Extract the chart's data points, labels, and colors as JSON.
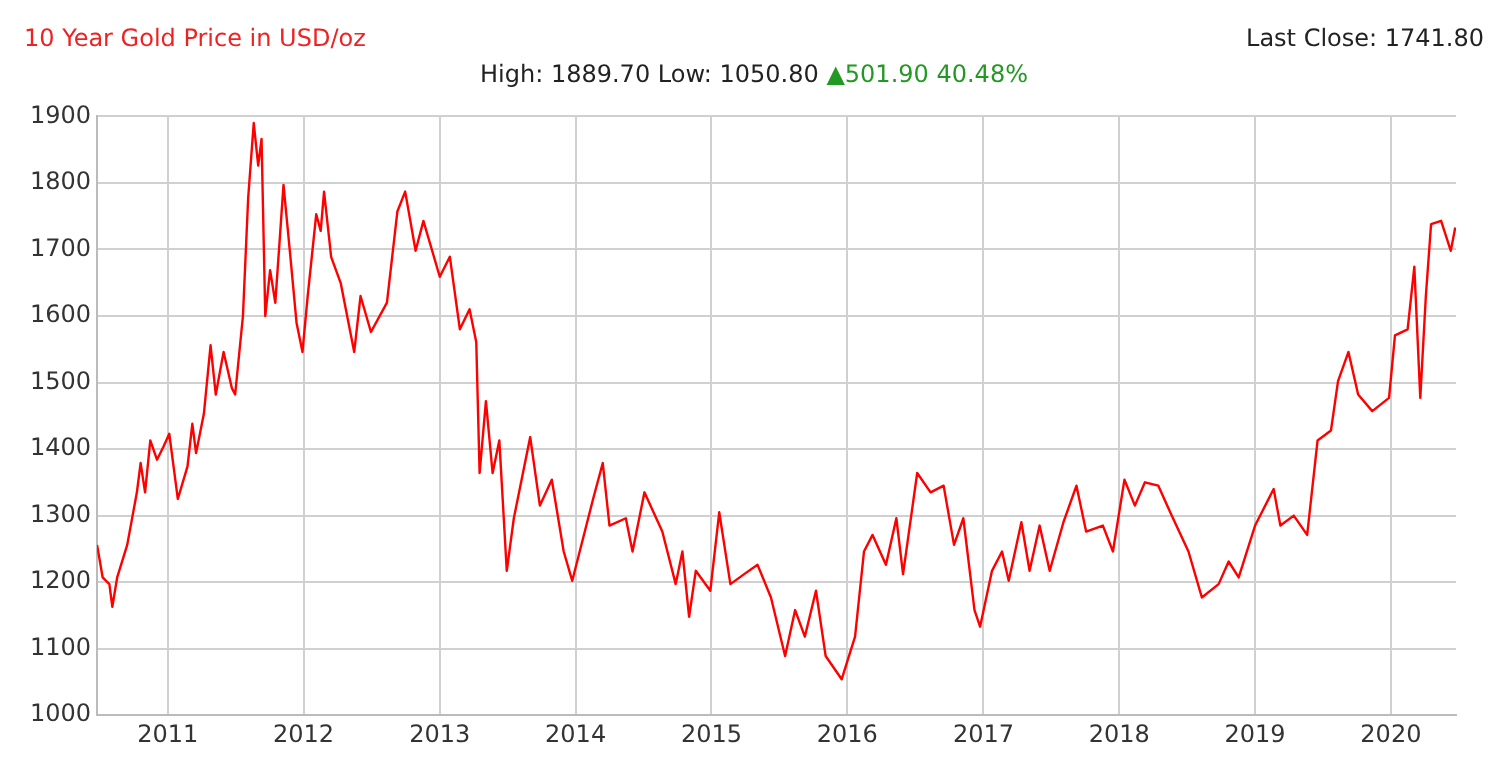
{
  "chart_data": {
    "type": "line",
    "title": "10 Year Gold Price in USD/oz",
    "subtitle": "High: 1889.70 Low: 1050.80",
    "annotations": [
      "Last Close: 1741.80",
      "▲501.90 40.48%"
    ],
    "x": [
      "2010-06-25",
      "2010-07-10",
      "2010-07-28",
      "2010-08-05",
      "2010-08-18",
      "2010-09-14",
      "2010-10-10",
      "2010-10-20",
      "2010-11-01",
      "2010-11-15",
      "2010-12-03",
      "2010-12-20",
      "2011-01-05",
      "2011-01-28",
      "2011-02-23",
      "2011-03-08",
      "2011-03-18",
      "2011-04-08",
      "2011-04-26",
      "2011-05-10",
      "2011-05-31",
      "2011-06-22",
      "2011-07-01",
      "2011-07-22",
      "2011-08-05",
      "2011-08-20",
      "2011-09-01",
      "2011-09-10",
      "2011-09-20",
      "2011-10-03",
      "2011-10-17",
      "2011-11-08",
      "2011-11-25",
      "2011-12-13",
      "2011-12-29",
      "2012-01-12",
      "2012-02-04",
      "2012-02-16",
      "2012-02-25",
      "2012-03-15",
      "2012-04-10",
      "2012-05-16",
      "2012-06-02",
      "2012-06-30",
      "2012-08-12",
      "2012-09-09",
      "2012-09-30",
      "2012-10-28",
      "2012-11-18",
      "2013-01-01",
      "2013-01-28",
      "2013-02-24",
      "2013-03-22",
      "2013-04-09",
      "2013-04-18",
      "2013-05-05",
      "2013-05-23",
      "2013-06-10",
      "2013-06-30",
      "2013-07-19",
      "2013-09-01",
      "2013-09-27",
      "2013-10-29",
      "2013-11-30",
      "2013-12-23",
      "2014-02-17",
      "2014-03-15",
      "2014-04-02",
      "2014-05-16",
      "2014-06-03",
      "2014-07-05",
      "2014-08-22",
      "2014-09-27",
      "2014-10-15",
      "2014-11-02",
      "2014-11-20",
      "2014-12-29",
      "2015-01-22",
      "2015-02-21",
      "2015-03-30",
      "2015-05-05",
      "2015-06-10",
      "2015-07-18",
      "2015-08-14",
      "2015-09-09",
      "2015-10-09",
      "2015-11-04",
      "2015-12-17",
      "2016-01-22",
      "2016-02-15",
      "2016-03-09",
      "2016-04-14",
      "2016-05-12",
      "2016-05-30",
      "2016-07-07",
      "2016-08-12",
      "2016-09-16",
      "2016-10-14",
      "2016-11-08",
      "2016-12-08",
      "2016-12-23",
      "2017-01-24",
      "2017-02-20",
      "2017-03-10",
      "2017-04-13",
      "2017-05-05",
      "2017-06-01",
      "2017-06-28",
      "2017-08-04",
      "2017-09-08",
      "2017-10-04",
      "2017-11-18",
      "2017-12-15",
      "2018-01-15",
      "2018-02-12",
      "2018-03-11",
      "2018-04-16",
      "2018-05-22",
      "2018-07-06",
      "2018-08-11",
      "2018-09-25",
      "2018-10-22",
      "2018-11-18",
      "2019-01-01",
      "2019-02-20",
      "2019-03-10",
      "2019-04-15",
      "2019-05-21",
      "2019-06-18",
      "2019-07-24",
      "2019-08-12",
      "2019-09-09",
      "2019-10-05",
      "2019-11-12",
      "2019-12-27",
      "2020-01-12",
      "2020-02-15",
      "2020-03-04",
      "2020-03-20",
      "2020-04-04",
      "2020-04-18",
      "2020-05-15",
      "2020-06-10",
      "2020-06-22"
    ],
    "series": [
      {
        "color": "#ff0000",
        "values": [
          1256,
          1207,
          1197,
          1163,
          1207,
          1256,
          1335,
          1379,
          1335,
          1413,
          1384,
          1403,
          1423,
          1325,
          1374,
          1438,
          1394,
          1453,
          1556,
          1482,
          1546,
          1492,
          1482,
          1600,
          1777,
          1890,
          1826,
          1866,
          1600,
          1669,
          1620,
          1797,
          1698,
          1590,
          1546,
          1630,
          1753,
          1728,
          1787,
          1689,
          1649,
          1546,
          1630,
          1576,
          1620,
          1757,
          1787,
          1698,
          1743,
          1659,
          1689,
          1580,
          1610,
          1561,
          1364,
          1472,
          1364,
          1413,
          1217,
          1296,
          1418,
          1315,
          1354,
          1246,
          1202,
          1325,
          1379,
          1285,
          1296,
          1246,
          1335,
          1276,
          1197,
          1246,
          1148,
          1217,
          1187,
          1305,
          1197,
          1212,
          1226,
          1177,
          1089,
          1158,
          1118,
          1187,
          1089,
          1054,
          1118,
          1246,
          1271,
          1226,
          1296,
          1212,
          1364,
          1335,
          1345,
          1256,
          1296,
          1158,
          1133,
          1217,
          1246,
          1202,
          1290,
          1217,
          1285,
          1217,
          1290,
          1345,
          1276,
          1285,
          1246,
          1354,
          1315,
          1350,
          1345,
          1300,
          1246,
          1177,
          1197,
          1231,
          1207,
          1285,
          1340,
          1285,
          1300,
          1271,
          1413,
          1428,
          1502,
          1546,
          1482,
          1457,
          1477,
          1571,
          1580,
          1674,
          1477,
          1630,
          1738,
          1743,
          1698,
          1733
        ]
      }
    ],
    "xlim": [
      "2010-06-25",
      "2020-06-24"
    ],
    "xticks": [
      "2011",
      "2012",
      "2013",
      "2014",
      "2015",
      "2016",
      "2017",
      "2018",
      "2019",
      "2020"
    ],
    "ylim": [
      1000,
      1900
    ],
    "yticks": [
      1000,
      1100,
      1200,
      1300,
      1400,
      1500,
      1600,
      1700,
      1800,
      1900
    ],
    "grid": true,
    "legend": false,
    "marker": "none",
    "line_style": "solid"
  }
}
